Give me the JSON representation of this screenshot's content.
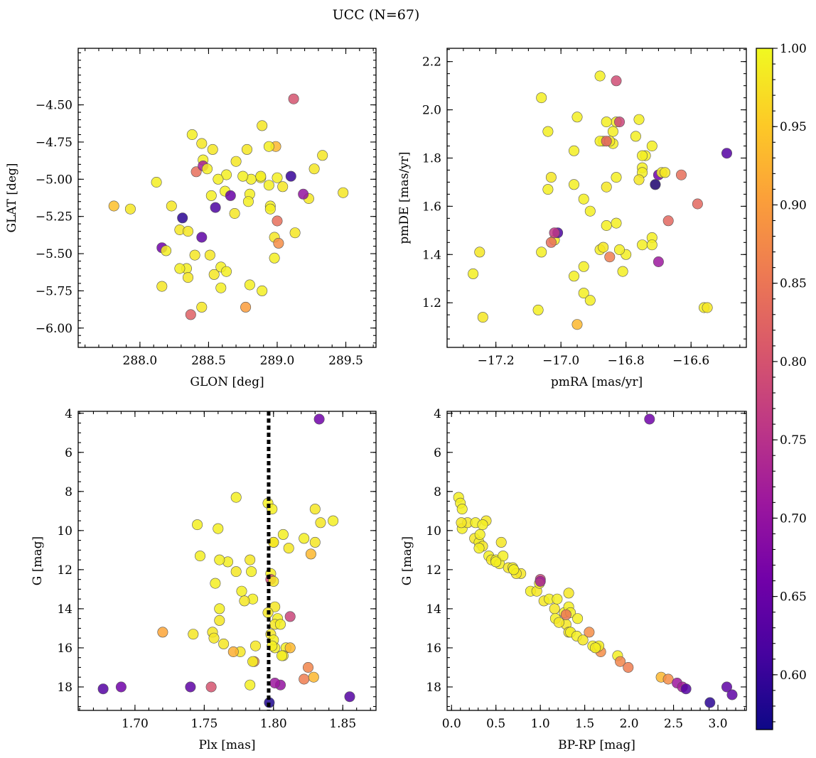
{
  "figure": {
    "title": "UCC (N=67)"
  },
  "colorbar": {
    "range": [
      0.565,
      1.0
    ],
    "ticks": [
      0.6,
      0.65,
      0.7,
      0.75,
      0.8,
      0.85,
      0.9,
      0.95,
      1.0
    ],
    "tick_labels": [
      "0.60",
      "0.65",
      "0.70",
      "0.75",
      "0.80",
      "0.85",
      "0.90",
      "0.95",
      "1.00"
    ],
    "colormap": "plasma",
    "colormap_stops": [
      "#0d0887",
      "#46039f",
      "#7201a8",
      "#9c179e",
      "#bd3786",
      "#d8576b",
      "#ed7953",
      "#fb9f3a",
      "#fdca26",
      "#f0f921"
    ]
  },
  "chart_data": [
    {
      "id": "p1",
      "type": "scatter",
      "xlabel": "GLON [deg]",
      "ylabel": "GLAT [deg]",
      "xlim": [
        287.55,
        289.72
      ],
      "ylim": [
        -6.13,
        -4.12
      ],
      "yinvert": false,
      "xticks": [
        288.0,
        288.5,
        289.0,
        289.5
      ],
      "xtick_labels": [
        "288.0",
        "288.5",
        "289.0",
        "289.5"
      ],
      "xminor": 0.1,
      "yticks": [
        -6.0,
        -5.75,
        -5.5,
        -5.25,
        -5.0,
        -4.75,
        -4.5
      ],
      "ytick_labels": [
        "−6.00",
        "−5.75",
        "−5.50",
        "−5.25",
        "−5.00",
        "−4.75",
        "−4.50"
      ],
      "yminor": 0.05,
      "vline": null,
      "x": [
        289.12,
        288.38,
        288.89,
        288.45,
        288.99,
        288.53,
        288.78,
        289.33,
        288.46,
        288.41,
        288.63,
        289.27,
        289.1,
        288.12,
        288.94,
        289.04,
        288.62,
        287.81,
        287.93,
        288.23,
        288.55,
        288.8,
        288.95,
        289.23,
        288.31,
        288.29,
        288.35,
        288.45,
        288.16,
        288.19,
        288.69,
        288.51,
        288.98,
        288.4,
        288.34,
        288.29,
        288.54,
        288.59,
        288.63,
        288.35,
        288.16,
        288.8,
        288.59,
        288.45,
        288.37,
        288.77,
        288.89,
        288.98,
        289.01,
        289.19,
        289.48,
        288.46,
        288.49,
        288.88,
        288.79,
        288.52,
        288.66,
        289.0,
        288.81,
        288.94,
        289.13,
        289.0,
        288.75,
        288.88,
        288.7,
        288.95,
        288.57
      ],
      "y": [
        -4.46,
        -4.7,
        -4.64,
        -4.76,
        -4.78,
        -4.8,
        -4.8,
        -4.84,
        -4.87,
        -4.95,
        -4.97,
        -4.93,
        -4.98,
        -5.02,
        -5.04,
        -5.05,
        -5.08,
        -5.18,
        -5.2,
        -5.18,
        -5.19,
        -5.1,
        -5.18,
        -5.13,
        -5.26,
        -5.34,
        -5.35,
        -5.39,
        -5.46,
        -5.48,
        -5.23,
        -5.51,
        -5.53,
        -5.51,
        -5.6,
        -5.6,
        -5.64,
        -5.59,
        -5.62,
        -5.66,
        -5.72,
        -5.71,
        -5.73,
        -5.86,
        -5.91,
        -5.86,
        -5.75,
        -5.39,
        -5.43,
        -5.1,
        -5.09,
        -4.91,
        -4.93,
        -4.99,
        -5.15,
        -5.11,
        -5.11,
        -5.28,
        -5.0,
        -4.78,
        -5.36,
        -4.99,
        -4.98,
        -4.98,
        -4.88,
        -5.2,
        -5.0
      ],
      "c": [
        0.8,
        0.99,
        0.98,
        0.98,
        0.93,
        0.98,
        0.98,
        0.98,
        0.99,
        0.84,
        0.99,
        0.98,
        0.6,
        0.99,
        0.99,
        0.98,
        0.99,
        0.94,
        0.98,
        0.98,
        0.62,
        0.99,
        0.99,
        0.98,
        0.59,
        0.98,
        0.98,
        0.64,
        0.66,
        0.99,
        0.98,
        0.98,
        0.99,
        0.98,
        0.99,
        0.99,
        0.98,
        0.99,
        0.99,
        0.98,
        0.98,
        0.99,
        0.99,
        0.98,
        0.82,
        0.9,
        0.99,
        0.98,
        0.88,
        0.7,
        0.98,
        0.72,
        0.99,
        0.99,
        0.99,
        0.99,
        0.65,
        0.84,
        0.99,
        0.99,
        0.98,
        0.99,
        0.99,
        0.99,
        0.98,
        0.99,
        0.99
      ]
    },
    {
      "id": "p2",
      "type": "scatter",
      "xlabel": "pmRA [mas/yr]",
      "ylabel": "pmDE [mas/yr]",
      "xlim": [
        -17.35,
        -16.43
      ],
      "ylim": [
        1.015,
        2.255
      ],
      "yinvert": false,
      "xticks": [
        -17.2,
        -17.0,
        -16.8,
        -16.6
      ],
      "xtick_labels": [
        "−17.2",
        "−17.0",
        "−16.8",
        "−16.6"
      ],
      "xminor": 0.05,
      "yticks": [
        1.2,
        1.4,
        1.6,
        1.8,
        2.0,
        2.2
      ],
      "ytick_labels": [
        "1.2",
        "1.4",
        "1.6",
        "1.8",
        "2.0",
        "2.2"
      ],
      "yminor": 0.05,
      "vline": null,
      "x": [
        -16.88,
        -16.83,
        -17.06,
        -16.83,
        -16.95,
        -16.76,
        -16.86,
        -17.04,
        -16.87,
        -16.77,
        -16.84,
        -16.72,
        -16.88,
        -16.84,
        -16.85,
        -16.74,
        -16.96,
        -16.75,
        -17.03,
        -16.83,
        -16.75,
        -16.75,
        -16.96,
        -16.7,
        -16.69,
        -16.71,
        -17.04,
        -16.93,
        -16.86,
        -17.02,
        -16.76,
        -16.91,
        -16.58,
        -16.67,
        -16.56,
        -16.63,
        -16.83,
        -16.86,
        -17.01,
        -17.02,
        -17.03,
        -17.06,
        -16.88,
        -16.87,
        -16.85,
        -16.8,
        -16.72,
        -16.75,
        -16.72,
        -16.82,
        -16.93,
        -16.96,
        -16.81,
        -17.27,
        -17.25,
        -16.93,
        -16.91,
        -17.24,
        -17.07,
        -16.95,
        -16.55,
        -16.49,
        -16.7,
        -16.82,
        -16.71,
        -16.86,
        -16.68
      ],
      "y": [
        2.14,
        2.12,
        2.05,
        1.95,
        1.97,
        1.96,
        1.95,
        1.91,
        1.87,
        1.89,
        1.91,
        1.85,
        1.87,
        1.86,
        1.87,
        1.81,
        1.83,
        1.81,
        1.72,
        1.72,
        1.76,
        1.74,
        1.69,
        1.73,
        1.74,
        1.69,
        1.67,
        1.63,
        1.68,
        1.46,
        1.71,
        1.58,
        1.61,
        1.54,
        1.18,
        1.73,
        1.53,
        1.52,
        1.49,
        1.49,
        1.45,
        1.41,
        1.42,
        1.43,
        1.39,
        1.4,
        1.47,
        1.44,
        1.44,
        1.42,
        1.35,
        1.31,
        1.33,
        1.32,
        1.41,
        1.24,
        1.21,
        1.14,
        1.17,
        1.11,
        1.18,
        1.82,
        1.37,
        1.95,
        1.69,
        1.87,
        1.74
      ],
      "c": [
        0.99,
        0.79,
        0.99,
        0.99,
        0.99,
        0.99,
        0.99,
        0.99,
        0.99,
        0.99,
        0.99,
        0.99,
        0.99,
        0.99,
        0.98,
        0.99,
        0.99,
        0.99,
        0.98,
        0.99,
        0.99,
        0.99,
        0.99,
        0.66,
        0.99,
        0.99,
        0.99,
        0.99,
        0.98,
        0.99,
        0.98,
        0.99,
        0.83,
        0.83,
        0.99,
        0.84,
        0.99,
        0.99,
        0.62,
        0.76,
        0.84,
        0.99,
        0.99,
        0.98,
        0.86,
        0.99,
        0.99,
        0.99,
        0.99,
        0.99,
        0.99,
        0.99,
        0.99,
        0.99,
        0.98,
        0.99,
        0.99,
        0.98,
        0.99,
        0.93,
        0.98,
        0.63,
        0.71,
        0.78,
        0.58,
        0.82,
        0.98
      ]
    },
    {
      "id": "p3",
      "type": "scatter",
      "xlabel": "Plx [mas]",
      "ylabel": "G [mag]",
      "xlim": [
        1.659,
        1.874
      ],
      "ylim": [
        3.9,
        19.2
      ],
      "yinvert": true,
      "xticks": [
        1.7,
        1.75,
        1.8,
        1.85
      ],
      "xtick_labels": [
        "1.70",
        "1.75",
        "1.80",
        "1.85"
      ],
      "xminor": 0.01,
      "yticks": [
        4,
        6,
        8,
        10,
        12,
        14,
        16,
        18
      ],
      "ytick_labels": [
        "4",
        "6",
        "8",
        "10",
        "12",
        "14",
        "16",
        "18"
      ],
      "yminor": 0.5,
      "vline": 1.7965,
      "x": [
        1.833,
        1.773,
        1.796,
        1.799,
        1.83,
        1.745,
        1.76,
        1.843,
        1.834,
        1.822,
        1.807,
        1.811,
        1.8,
        1.83,
        1.747,
        1.767,
        1.8,
        1.761,
        1.773,
        1.784,
        1.798,
        1.827,
        1.798,
        1.783,
        1.777,
        1.8,
        1.801,
        1.758,
        1.785,
        1.779,
        1.761,
        1.803,
        1.801,
        1.796,
        1.798,
        1.801,
        1.776,
        1.809,
        1.805,
        1.812,
        1.761,
        1.807,
        1.72,
        1.742,
        1.756,
        1.757,
        1.8,
        1.812,
        1.764,
        1.799,
        1.787,
        1.786,
        1.806,
        1.771,
        1.805,
        1.783,
        1.825,
        1.785,
        1.822,
        1.829,
        1.677,
        1.69,
        1.74,
        1.755,
        1.801,
        1.797,
        1.855
      ],
      "y": [
        4.3,
        8.3,
        8.6,
        8.9,
        8.9,
        9.7,
        9.9,
        9.5,
        9.6,
        10.4,
        10.2,
        10.9,
        10.6,
        10.6,
        11.3,
        11.6,
        10.6,
        11.5,
        12.1,
        12.1,
        12.2,
        11.2,
        12.5,
        11.5,
        13.1,
        12.6,
        13.9,
        12.7,
        13.5,
        13.6,
        14.0,
        14.5,
        14.8,
        14.2,
        15.3,
        16.0,
        16.2,
        16.0,
        14.8,
        14.4,
        14.6,
        16.4,
        15.2,
        15.3,
        15.2,
        15.5,
        15.6,
        16.0,
        15.8,
        15.9,
        15.9,
        16.7,
        16.4,
        16.2,
        17.9,
        17.9,
        17.0,
        16.7,
        17.6,
        17.5,
        18.1,
        18.0,
        18.0,
        18.0,
        17.8,
        18.8,
        18.5
      ],
      "c": [
        0.66,
        0.99,
        0.99,
        0.99,
        0.98,
        0.99,
        0.99,
        0.99,
        0.98,
        0.99,
        0.99,
        0.98,
        0.98,
        0.98,
        0.99,
        0.99,
        0.98,
        0.99,
        0.98,
        0.99,
        0.99,
        0.93,
        0.79,
        0.98,
        0.99,
        0.98,
        0.98,
        0.99,
        0.99,
        0.98,
        0.99,
        0.99,
        0.98,
        0.98,
        0.98,
        0.99,
        0.98,
        0.99,
        0.99,
        0.78,
        0.98,
        0.98,
        0.91,
        0.98,
        0.98,
        0.98,
        0.99,
        0.93,
        0.98,
        0.99,
        0.98,
        0.88,
        0.99,
        0.92,
        0.7,
        0.99,
        0.87,
        0.99,
        0.86,
        0.93,
        0.63,
        0.66,
        0.64,
        0.8,
        0.71,
        0.58,
        0.63
      ]
    },
    {
      "id": "p4",
      "type": "scatter",
      "xlabel": "BP-RP [mag]",
      "ylabel": "G [mag]",
      "xlim": [
        -0.05,
        3.32
      ],
      "ylim": [
        3.9,
        19.2
      ],
      "yinvert": true,
      "xticks": [
        0.0,
        0.5,
        1.0,
        1.5,
        2.0,
        2.5,
        3.0
      ],
      "xtick_labels": [
        "0.0",
        "0.5",
        "1.0",
        "1.5",
        "2.0",
        "2.5",
        "3.0"
      ],
      "xminor": 0.1,
      "yticks": [
        4,
        6,
        8,
        10,
        12,
        14,
        16,
        18
      ],
      "ytick_labels": [
        "4",
        "6",
        "8",
        "10",
        "12",
        "14",
        "16",
        "18"
      ],
      "yminor": 0.5,
      "vline": null,
      "x": [
        2.23,
        0.08,
        0.1,
        0.12,
        0.12,
        0.18,
        0.27,
        0.39,
        0.35,
        0.11,
        0.26,
        0.31,
        0.32,
        0.35,
        0.42,
        0.45,
        0.5,
        0.56,
        0.54,
        0.58,
        0.64,
        0.69,
        0.7,
        0.78,
        0.89,
        0.96,
        1.0,
        0.99,
        1.04,
        1.1,
        1.16,
        1.17,
        1.27,
        1.29,
        1.32,
        1.32,
        1.34,
        1.19,
        1.21,
        1.34,
        1.32,
        1.41,
        1.48,
        1.55,
        1.59,
        1.64,
        1.68,
        1.66,
        1.62,
        1.87,
        1.9,
        1.99,
        2.36,
        2.44,
        2.54,
        2.6,
        2.64,
        2.91,
        3.1,
        3.16,
        1.29,
        1.0,
        0.31,
        1.42,
        0.73,
        0.5,
        0.7
      ],
      "y": [
        4.3,
        8.3,
        8.6,
        8.9,
        9.9,
        9.6,
        9.6,
        9.5,
        9.7,
        9.6,
        10.4,
        10.6,
        10.2,
        10.8,
        11.3,
        11.5,
        11.5,
        10.6,
        11.7,
        11.3,
        11.9,
        11.9,
        12.0,
        12.2,
        13.1,
        13.1,
        12.5,
        12.7,
        13.6,
        13.5,
        14.0,
        14.5,
        14.2,
        14.8,
        13.9,
        15.2,
        14.2,
        13.5,
        14.7,
        15.2,
        13.2,
        15.4,
        15.6,
        15.2,
        15.9,
        16.0,
        16.2,
        15.9,
        16.0,
        16.4,
        16.7,
        17.0,
        17.5,
        17.6,
        17.8,
        18.0,
        18.1,
        18.8,
        18.0,
        18.4,
        14.3,
        12.6,
        10.9,
        14.5,
        12.2,
        11.6,
        12.0
      ],
      "c": [
        0.66,
        0.99,
        0.99,
        0.99,
        0.99,
        0.98,
        0.99,
        0.98,
        0.99,
        0.98,
        0.98,
        0.99,
        0.99,
        0.98,
        0.99,
        0.98,
        0.99,
        0.98,
        0.99,
        0.99,
        0.98,
        0.99,
        0.99,
        0.98,
        0.99,
        0.98,
        0.78,
        0.99,
        0.98,
        0.99,
        0.98,
        0.99,
        0.99,
        0.98,
        0.99,
        0.98,
        0.99,
        0.99,
        0.98,
        0.99,
        0.98,
        0.99,
        0.98,
        0.88,
        0.99,
        0.92,
        0.88,
        0.99,
        0.99,
        0.99,
        0.87,
        0.86,
        0.93,
        0.88,
        0.71,
        0.72,
        0.63,
        0.59,
        0.64,
        0.64,
        0.85,
        0.72,
        0.99,
        0.99,
        0.98,
        0.99,
        0.99
      ]
    }
  ]
}
